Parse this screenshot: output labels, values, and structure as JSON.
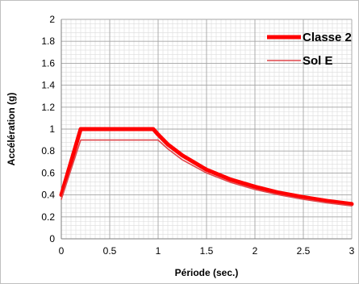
{
  "chart_data": {
    "type": "line",
    "title": "",
    "xlabel": "Période (sec.)",
    "ylabel": "Accélération (g)",
    "xlim": [
      0,
      3
    ],
    "ylim": [
      0,
      2
    ],
    "x_ticks": [
      "0",
      "0.5",
      "1",
      "1.5",
      "2",
      "2.5",
      "3"
    ],
    "y_ticks": [
      "0",
      "0.2",
      "0.4",
      "0.6",
      "0.8",
      "1",
      "1.2",
      "1.4",
      "1.6",
      "1.8",
      "2"
    ],
    "grid": true,
    "minor_grid": true,
    "legend_position": "top-right",
    "series": [
      {
        "name": "Classe 2",
        "color": "#ff0000",
        "style": "thick",
        "x": [
          0,
          0.2,
          0.95,
          1.0,
          1.1,
          1.25,
          1.5,
          1.75,
          2.0,
          2.25,
          2.5,
          2.75,
          3.0
        ],
        "y": [
          0.4,
          1.0,
          1.0,
          0.95,
          0.86,
          0.76,
          0.63,
          0.54,
          0.475,
          0.42,
          0.38,
          0.345,
          0.317
        ]
      },
      {
        "name": "Sol E",
        "color": "#e0474c",
        "style": "thin",
        "x": [
          0,
          0.2,
          1.0,
          1.1,
          1.25,
          1.5,
          1.75,
          2.0,
          2.25,
          2.5,
          2.75,
          3.0
        ],
        "y": [
          0.36,
          0.9,
          0.9,
          0.82,
          0.72,
          0.6,
          0.514,
          0.45,
          0.4,
          0.36,
          0.327,
          0.3
        ]
      }
    ]
  }
}
